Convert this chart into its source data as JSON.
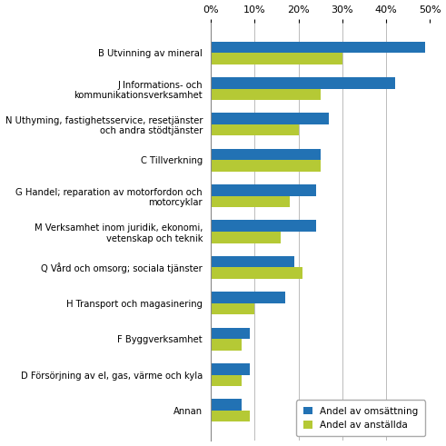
{
  "categories": [
    "B Utvinning av mineral",
    "J Informations- och\nkommunikationsverksamhet",
    "N Uthyming, fastighetsservice, resetjänster\noch andra stödtjänster",
    "C Tillverkning",
    "G Handel; reparation av motorfordon och\nmotorcyklar",
    "M Verksamhet inom juridik, ekonomi,\nvetenskap och teknik",
    "Q Vård och omsorg; sociala tjänster",
    "H Transport och magasinering",
    "F Byggverksamhet",
    "D Försörjning av el, gas, värme och kyla",
    "Annan"
  ],
  "omsattning": [
    49,
    42,
    27,
    25,
    24,
    24,
    19,
    17,
    9,
    9,
    7
  ],
  "anstallda": [
    30,
    25,
    20,
    25,
    18,
    16,
    21,
    10,
    7,
    7,
    9
  ],
  "color_omsattning": "#2272B4",
  "color_anstallda": "#B5C935",
  "legend_omsattning": "Andel av omsättning",
  "legend_anstallda": "Andel av anställda",
  "xlim": [
    0,
    50
  ],
  "xticks": [
    0,
    10,
    20,
    30,
    40,
    50
  ],
  "xticklabels": [
    "0%",
    "10%",
    "20%",
    "30%",
    "40%",
    "50%"
  ],
  "bg_color": "#FFFFFF",
  "grid_color": "#BBBBBB",
  "bar_height": 0.32,
  "label_fontsize": 7.2,
  "tick_fontsize": 8,
  "legend_fontsize": 7.5
}
